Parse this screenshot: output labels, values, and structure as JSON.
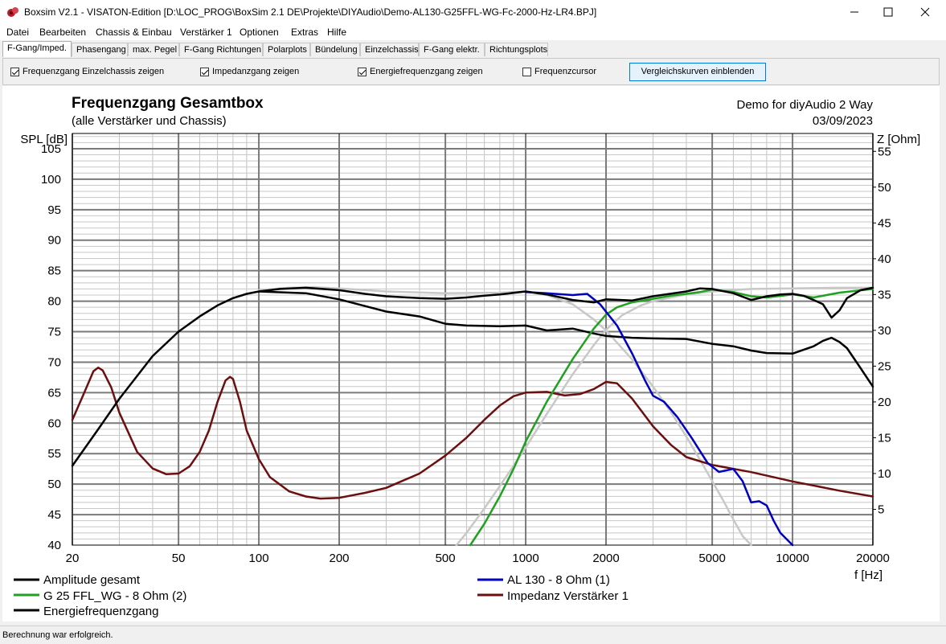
{
  "window": {
    "title": "Boxsim V2.1 - VISATON-Edition [D:\\LOC_PROG\\BoxSim 2.1 DE\\Projekte\\DIYAudio\\Demo-AL130-G25FFL-WG-Fc-2000-Hz-LR4.BPJ]",
    "min_glyph": "—",
    "max_glyph": "☐",
    "close_glyph": "✕",
    "icon": "boxsim-app-icon"
  },
  "menu": [
    "Datei",
    "Bearbeiten",
    "Chassis & Einbau",
    "Verstärker 1",
    "Optionen",
    "Extras",
    "Hilfe"
  ],
  "tabs": [
    {
      "label": "F-Gang/Imped.",
      "active": true
    },
    {
      "label": "Phasengang",
      "active": false
    },
    {
      "label": "max. Pegel",
      "active": false
    },
    {
      "label": "F-Gang Richtungen",
      "active": false
    },
    {
      "label": "Polarplots",
      "active": false
    },
    {
      "label": "Bündelung",
      "active": false
    },
    {
      "label": "Einzelchassis",
      "active": false
    },
    {
      "label": "F-Gang elektr.",
      "active": false
    },
    {
      "label": "Richtungsplots",
      "active": false
    }
  ],
  "options": {
    "einzelchassis": {
      "label": "Frequenzgang Einzelchassis zeigen",
      "checked": true
    },
    "impedanz": {
      "label": "Impedanzgang zeigen",
      "checked": true
    },
    "energie": {
      "label": "Energiefrequenzgang zeigen",
      "checked": true
    },
    "cursor": {
      "label": "Frequenzcursor",
      "checked": false
    },
    "vergleich_button": "Vergleichskurven einblenden"
  },
  "status": "Berechnung war erfolgreich.",
  "chart_data": {
    "type": "line",
    "title": "Frequenzgang Gesamtbox",
    "subtitle": "(alle Verstärker und Chassis)",
    "project_name": "Demo for diyAudio 2 Way",
    "date": "03/09/2023",
    "ylabel": "SPL [dB]",
    "y2label": "Z [Ohm]",
    "xlabel": "f [Hz]",
    "x_scale": "log",
    "xlim": [
      20,
      20000
    ],
    "ylim": [
      40,
      107.5
    ],
    "y2lim": [
      0,
      57.5
    ],
    "x_ticks": [
      20,
      50,
      100,
      200,
      500,
      1000,
      2000,
      5000,
      10000,
      20000
    ],
    "y_ticks": [
      40,
      45,
      50,
      55,
      60,
      65,
      70,
      75,
      80,
      85,
      90,
      95,
      100,
      105
    ],
    "y2_ticks": [
      5,
      10,
      15,
      20,
      25,
      30,
      35,
      40,
      45,
      50,
      55
    ],
    "grid": true,
    "legend_position": "bottom",
    "legend": [
      {
        "name": "Amplitude gesamt",
        "color": "#000000"
      },
      {
        "name": "AL 130 - 8 Ohm (1)",
        "color": "#0000c0"
      },
      {
        "name": "G 25 FFL_WG - 8 Ohm (2)",
        "color": "#22a022"
      },
      {
        "name": "Impedanz Verstärker 1",
        "color": "#6b0f0f"
      },
      {
        "name": "Energiefrequenzgang",
        "color": "#000000"
      }
    ],
    "series": [
      {
        "id": "amp",
        "name": "Amplitude gesamt",
        "color": "#000000",
        "axis": "y",
        "x": [
          20,
          25,
          30,
          40,
          50,
          60,
          70,
          80,
          90,
          100,
          120,
          150,
          200,
          250,
          300,
          400,
          500,
          600,
          700,
          800,
          1000,
          1200,
          1500,
          1800,
          2000,
          2500,
          3000,
          4000,
          4500,
          5000,
          6000,
          7000,
          8000,
          9000,
          10000,
          11000,
          12000,
          13000,
          14000,
          15000,
          16000,
          18000,
          20000
        ],
        "y": [
          53,
          59,
          64,
          71,
          75,
          77.5,
          79.3,
          80.5,
          81.2,
          81.6,
          82,
          82.2,
          81.8,
          81.2,
          80.8,
          80.5,
          80.4,
          80.6,
          80.9,
          81.1,
          81.6,
          81.1,
          80.2,
          79.8,
          80.3,
          80.1,
          80.8,
          81.6,
          82.1,
          82,
          81.3,
          80.2,
          80.8,
          81.1,
          81.2,
          80.9,
          80.2,
          79.5,
          77.3,
          78.5,
          80.5,
          81.8,
          82.2
        ]
      },
      {
        "id": "tt",
        "name": "AL 130 - 8 Ohm (1)",
        "color": "#0000c0",
        "axis": "y",
        "x": [
          1000,
          1200,
          1500,
          1700,
          1900,
          2200,
          2500,
          2800,
          3000,
          3300,
          3700,
          4200,
          4800,
          5300,
          6000,
          6500,
          7000,
          7500,
          8000,
          8500,
          9000,
          10000
        ],
        "y": [
          81.5,
          81.3,
          81,
          81.2,
          79.5,
          76,
          71.5,
          67,
          64.5,
          63.5,
          61,
          57.5,
          53.5,
          52,
          52.5,
          50.5,
          47,
          47.2,
          46.5,
          44,
          42,
          40
        ]
      },
      {
        "id": "ht",
        "name": "G 25 FFL_WG - 8 Ohm (2)",
        "color": "#22a022",
        "axis": "y",
        "x": [
          620,
          700,
          800,
          900,
          1000,
          1200,
          1500,
          1800,
          2000,
          2200,
          2500,
          3000,
          3500,
          4000,
          4500,
          5000,
          6000,
          7000,
          8000,
          10000,
          12000,
          15000,
          20000
        ],
        "y": [
          40,
          43.5,
          48,
          52.5,
          57,
          63.5,
          70.5,
          75.5,
          77.8,
          79,
          79.8,
          80.4,
          80.9,
          81.2,
          81.5,
          81.9,
          81.5,
          80.8,
          80.6,
          81.1,
          80.6,
          81.4,
          82
        ]
      },
      {
        "id": "tt_target",
        "name": "",
        "color": "#c8c8c8",
        "axis": "y",
        "x": [
          1000,
          1200,
          1500,
          1800,
          2000,
          2200,
          2500,
          3000,
          3500,
          4000,
          4500,
          5000,
          5500,
          6000,
          6500,
          7000
        ],
        "y": [
          81.6,
          81,
          79.5,
          77,
          75.2,
          73.2,
          70.5,
          66,
          61.8,
          57.8,
          54,
          50.5,
          47.3,
          44.2,
          41.5,
          39
        ]
      },
      {
        "id": "ht_target",
        "name": "",
        "color": "#c8c8c8",
        "axis": "y",
        "x": [
          550,
          600,
          700,
          800,
          900,
          1000,
          1200,
          1500,
          1800,
          2000,
          2300,
          2700,
          3000,
          3500,
          4000,
          5000,
          7000,
          10000,
          15000,
          20000
        ],
        "y": [
          40,
          42,
          46,
          49.7,
          53,
          56,
          61.5,
          68,
          72.8,
          75.3,
          77.7,
          79.3,
          80,
          80.6,
          81.1,
          81.6,
          82,
          82.1,
          82.2,
          82.2
        ]
      },
      {
        "id": "target_low",
        "name": "",
        "color": "#c8c8c8",
        "axis": "y",
        "x": [
          100,
          130,
          160,
          200,
          300,
          500,
          800,
          1000
        ],
        "y": [
          81.8,
          82.2,
          82.3,
          82.1,
          81.6,
          81.3,
          81.4,
          81.6
        ]
      },
      {
        "id": "energy",
        "name": "Energiefrequenzgang",
        "color": "#000000",
        "axis": "y",
        "x": [
          100,
          150,
          200,
          250,
          300,
          400,
          500,
          600,
          800,
          1000,
          1200,
          1500,
          1800,
          2000,
          2500,
          3000,
          4000,
          5000,
          6000,
          7000,
          8000,
          10000,
          12000,
          13000,
          14000,
          15000,
          16000,
          18000,
          20000
        ],
        "y": [
          81.6,
          81.3,
          80.3,
          79.2,
          78.3,
          77.5,
          76.3,
          76,
          75.9,
          76,
          75.2,
          75.5,
          74.7,
          74.3,
          74,
          73.9,
          73.8,
          73,
          72.6,
          71.9,
          71.5,
          71.4,
          72.6,
          73.5,
          74,
          73.3,
          72.3,
          69,
          66
        ]
      },
      {
        "id": "imp",
        "name": "Impedanz Verstärker 1",
        "color": "#6b0f0f",
        "axis": "y2",
        "x": [
          20,
          22,
          24,
          25,
          26,
          28,
          30,
          35,
          40,
          45,
          50,
          55,
          60,
          65,
          70,
          75,
          78,
          80,
          85,
          90,
          100,
          110,
          130,
          150,
          170,
          200,
          250,
          300,
          400,
          500,
          600,
          700,
          800,
          900,
          1000,
          1200,
          1400,
          1600,
          1800,
          2000,
          2200,
          2500,
          3000,
          3500,
          4000,
          5000,
          7000,
          10000,
          15000,
          20000
        ],
        "y": [
          17.5,
          21,
          24.3,
          24.8,
          24.4,
          22,
          18.5,
          13,
          10.7,
          9.9,
          10,
          11,
          13,
          16,
          20,
          23,
          23.5,
          23.2,
          20,
          16,
          12,
          9.5,
          7.5,
          6.8,
          6.5,
          6.6,
          7.3,
          8,
          10,
          12.5,
          15,
          17.5,
          19.5,
          20.8,
          21.3,
          21.4,
          20.9,
          21.1,
          21.8,
          22.8,
          22.6,
          20.5,
          16.6,
          14,
          12.3,
          11.2,
          10.2,
          8.9,
          7.6,
          6.8
        ]
      }
    ]
  }
}
